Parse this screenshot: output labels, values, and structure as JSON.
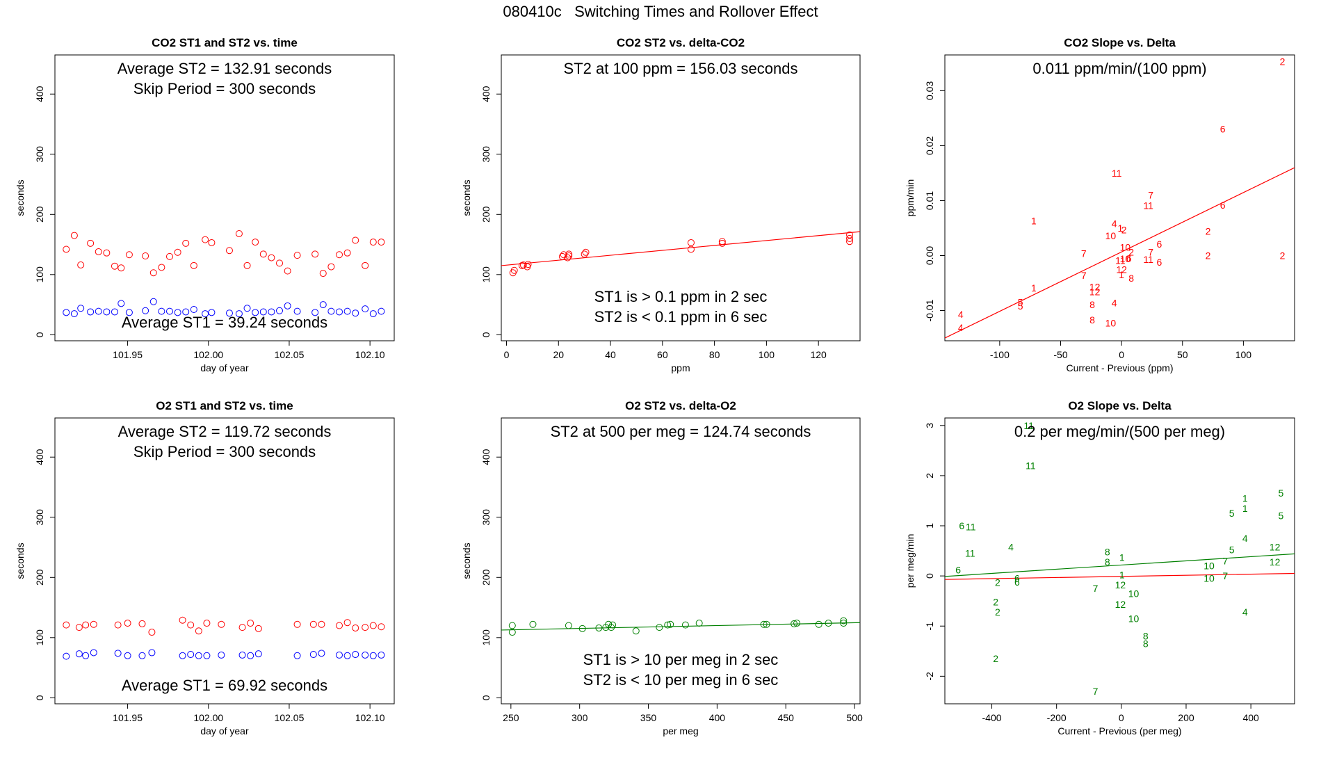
{
  "page_title": "080410c   Switching Times and Rollover Effect",
  "colors": {
    "st2": "#ff0000",
    "st1": "#0000ff",
    "co2": "#ff0000",
    "o2": "#008000",
    "frame": "#000000"
  },
  "chart_data": [
    {
      "id": "co2-st-vs-time",
      "type": "scatter",
      "title": "CO2 ST1 and ST2 vs. time",
      "xlabel": "day of year",
      "ylabel": "seconds",
      "xlim": [
        101.905,
        102.115
      ],
      "ylim": [
        -10,
        465
      ],
      "xticks": [
        101.95,
        102.0,
        102.05,
        102.1
      ],
      "xtick_labels": [
        "101.95",
        "102.00",
        "102.05",
        "102.10"
      ],
      "yticks": [
        0,
        100,
        200,
        300,
        400
      ],
      "ytick_labels": [
        "0",
        "100",
        "200",
        "300",
        "400"
      ],
      "annotations": [
        "Average ST2 =  132.91  seconds",
        "Skip Period =  300  seconds",
        "Average ST1 =  39.24  seconds"
      ],
      "series": [
        {
          "color_key": "st2",
          "marker": "circle",
          "x": [
            101.912,
            101.917,
            101.921,
            101.927,
            101.932,
            101.937,
            101.942,
            101.946,
            101.951,
            101.961,
            101.966,
            101.971,
            101.976,
            101.981,
            101.986,
            101.991,
            101.998,
            102.002,
            102.013,
            102.019,
            102.024,
            102.029,
            102.034,
            102.039,
            102.044,
            102.049,
            102.055,
            102.066,
            102.071,
            102.076,
            102.081,
            102.086,
            102.091,
            102.097,
            102.102,
            102.107
          ],
          "y": [
            142,
            165,
            116,
            152,
            138,
            136,
            114,
            111,
            133,
            131,
            103,
            112,
            130,
            137,
            152,
            115,
            158,
            153,
            140,
            168,
            115,
            154,
            134,
            128,
            119,
            106,
            132,
            134,
            102,
            113,
            133,
            136,
            157,
            115,
            154,
            154
          ]
        },
        {
          "color_key": "st1",
          "marker": "circle",
          "x": [
            101.912,
            101.917,
            101.921,
            101.927,
            101.932,
            101.937,
            101.942,
            101.946,
            101.951,
            101.961,
            101.966,
            101.971,
            101.976,
            101.981,
            101.986,
            101.991,
            101.998,
            102.002,
            102.013,
            102.019,
            102.024,
            102.029,
            102.034,
            102.039,
            102.044,
            102.049,
            102.055,
            102.066,
            102.071,
            102.076,
            102.081,
            102.086,
            102.091,
            102.097,
            102.102,
            102.107
          ],
          "y": [
            37,
            35,
            44,
            38,
            39,
            38,
            38,
            52,
            37,
            40,
            55,
            39,
            39,
            37,
            38,
            42,
            35,
            37,
            36,
            35,
            44,
            37,
            38,
            38,
            40,
            48,
            39,
            37,
            50,
            39,
            38,
            39,
            36,
            43,
            35,
            39
          ]
        }
      ]
    },
    {
      "id": "co2-st2-vs-delta",
      "type": "scatter",
      "title": "CO2 ST2 vs. delta-CO2",
      "xlabel": "ppm",
      "ylabel": "seconds",
      "xlim": [
        -2,
        136
      ],
      "ylim": [
        -10,
        465
      ],
      "xticks": [
        0,
        20,
        40,
        60,
        80,
        100,
        120
      ],
      "xtick_labels": [
        "0",
        "20",
        "40",
        "60",
        "80",
        "100",
        "120"
      ],
      "yticks": [
        0,
        100,
        200,
        300,
        400
      ],
      "ytick_labels": [
        "0",
        "100",
        "200",
        "300",
        "400"
      ],
      "annotations": [
        "ST2 at 100 ppm =  156.03  seconds",
        "ST1 is > 0.1 ppm in 2 sec",
        "ST2 is < 0.1 ppm in 6 sec"
      ],
      "fit_line": {
        "x": [
          -2,
          136
        ],
        "y": [
          114.9,
          171.3
        ]
      },
      "series": [
        {
          "color_key": "co2",
          "marker": "circle",
          "x": [
            2.5,
            3,
            6,
            6.5,
            8,
            8.3,
            21.5,
            22,
            23.5,
            24,
            24,
            30,
            30.5,
            71,
            71,
            83,
            83,
            132,
            132,
            132
          ],
          "y": [
            103,
            107,
            115,
            116,
            113,
            117,
            130,
            133,
            128,
            134,
            131,
            134,
            137,
            142,
            153,
            152,
            155,
            155,
            160,
            166
          ]
        }
      ]
    },
    {
      "id": "co2-slope-vs-delta",
      "type": "scatter",
      "title": "CO2 Slope vs. Delta",
      "xlabel": "Current - Previous (ppm)",
      "ylabel": "ppm/min",
      "xlim": [
        -145,
        142
      ],
      "ylim": [
        -0.0155,
        0.0365
      ],
      "xticks": [
        -100,
        -50,
        0,
        50,
        100
      ],
      "xtick_labels": [
        "-100",
        "-50",
        "0",
        "50",
        "100"
      ],
      "yticks": [
        -0.01,
        0.0,
        0.01,
        0.02,
        0.03
      ],
      "ytick_labels": [
        "-0.01",
        "0.00",
        "0.01",
        "0.02",
        "0.03"
      ],
      "annotations": [
        "0.011  ppm/min/(100 ppm)"
      ],
      "fit_line": {
        "x": [
          -145,
          142
        ],
        "y": [
          -0.015,
          0.016
        ]
      },
      "points": [
        {
          "x": 132,
          "y": 0.0353,
          "label": "2"
        },
        {
          "x": 83,
          "y": 0.023,
          "label": "6"
        },
        {
          "x": -4,
          "y": 0.015,
          "label": "11"
        },
        {
          "x": 24,
          "y": 0.011,
          "label": "7"
        },
        {
          "x": 22,
          "y": 0.0091,
          "label": "11"
        },
        {
          "x": 83,
          "y": 0.0092,
          "label": "6"
        },
        {
          "x": -72,
          "y": 0.0063,
          "label": "1"
        },
        {
          "x": -6,
          "y": 0.0058,
          "label": "4"
        },
        {
          "x": -1,
          "y": 0.005,
          "label": "1"
        },
        {
          "x": 2,
          "y": 0.0047,
          "label": "2"
        },
        {
          "x": -9,
          "y": 0.0036,
          "label": "10"
        },
        {
          "x": 71,
          "y": 0.0044,
          "label": "2"
        },
        {
          "x": 31,
          "y": 0.0021,
          "label": "6"
        },
        {
          "x": 3,
          "y": 0.0015,
          "label": "10"
        },
        {
          "x": 8,
          "y": 0.0006,
          "label": "2"
        },
        {
          "x": -31,
          "y": 0.0004,
          "label": "7"
        },
        {
          "x": 24,
          "y": 0.0006,
          "label": "7"
        },
        {
          "x": 71,
          "y": 0.0,
          "label": "2"
        },
        {
          "x": 132,
          "y": 0.0,
          "label": "2"
        },
        {
          "x": -1,
          "y": -0.0009,
          "label": "11"
        },
        {
          "x": 3,
          "y": -0.0006,
          "label": "10"
        },
        {
          "x": 6,
          "y": -0.0005,
          "label": "6"
        },
        {
          "x": 22,
          "y": -0.0007,
          "label": "11"
        },
        {
          "x": 31,
          "y": -0.0012,
          "label": "6"
        },
        {
          "x": 0,
          "y": -0.0025,
          "label": "12"
        },
        {
          "x": -31,
          "y": -0.0036,
          "label": "7"
        },
        {
          "x": 0,
          "y": -0.0035,
          "label": "1"
        },
        {
          "x": 8,
          "y": -0.0041,
          "label": "8"
        },
        {
          "x": -72,
          "y": -0.0059,
          "label": "1"
        },
        {
          "x": -22,
          "y": -0.0057,
          "label": "12"
        },
        {
          "x": -22,
          "y": -0.0066,
          "label": "12"
        },
        {
          "x": -83,
          "y": -0.0085,
          "label": "5"
        },
        {
          "x": -83,
          "y": -0.0092,
          "label": "5"
        },
        {
          "x": -24,
          "y": -0.0089,
          "label": "8"
        },
        {
          "x": -6,
          "y": -0.0086,
          "label": "4"
        },
        {
          "x": -132,
          "y": -0.0107,
          "label": "4"
        },
        {
          "x": -24,
          "y": -0.0117,
          "label": "8"
        },
        {
          "x": -9,
          "y": -0.0123,
          "label": "10"
        },
        {
          "x": -132,
          "y": -0.0131,
          "label": "4"
        }
      ]
    },
    {
      "id": "o2-st-vs-time",
      "type": "scatter",
      "title": "O2 ST1 and ST2 vs. time",
      "xlabel": "day of year",
      "ylabel": "seconds",
      "xlim": [
        101.905,
        102.115
      ],
      "ylim": [
        -10,
        465
      ],
      "xticks": [
        101.95,
        102.0,
        102.05,
        102.1
      ],
      "xtick_labels": [
        "101.95",
        "102.00",
        "102.05",
        "102.10"
      ],
      "yticks": [
        0,
        100,
        200,
        300,
        400
      ],
      "ytick_labels": [
        "0",
        "100",
        "200",
        "300",
        "400"
      ],
      "annotations": [
        "Average ST2 =  119.72  seconds",
        "Skip Period =  300  seconds",
        "Average ST1 =  69.92  seconds"
      ],
      "series": [
        {
          "color_key": "st2",
          "marker": "circle",
          "x": [
            101.912,
            101.92,
            101.924,
            101.929,
            101.944,
            101.95,
            101.959,
            101.965,
            101.984,
            101.989,
            101.994,
            101.999,
            102.008,
            102.021,
            102.026,
            102.031,
            102.055,
            102.065,
            102.07,
            102.081,
            102.086,
            102.091,
            102.097,
            102.102,
            102.107
          ],
          "y": [
            121,
            117,
            121,
            122,
            121,
            124,
            123,
            109,
            129,
            121,
            111,
            124,
            122,
            117,
            124,
            115,
            122,
            122,
            122,
            120,
            125,
            116,
            117,
            120,
            118
          ]
        },
        {
          "color_key": "st1",
          "marker": "circle",
          "x": [
            101.912,
            101.92,
            101.924,
            101.929,
            101.944,
            101.95,
            101.959,
            101.965,
            101.984,
            101.989,
            101.994,
            101.999,
            102.008,
            102.021,
            102.026,
            102.031,
            102.055,
            102.065,
            102.07,
            102.081,
            102.086,
            102.091,
            102.097,
            102.102,
            102.107
          ],
          "y": [
            69,
            73,
            70,
            75,
            74,
            70,
            70,
            75,
            70,
            72,
            70,
            70,
            71,
            71,
            70,
            73,
            70,
            72,
            74,
            71,
            70,
            72,
            71,
            70,
            71
          ]
        }
      ]
    },
    {
      "id": "o2-st2-vs-delta",
      "type": "scatter",
      "title": "O2 ST2 vs. delta-O2",
      "xlabel": "per meg",
      "ylabel": "seconds",
      "xlim": [
        243,
        504
      ],
      "ylim": [
        -10,
        465
      ],
      "xticks": [
        250,
        300,
        350,
        400,
        450,
        500
      ],
      "xtick_labels": [
        "250",
        "300",
        "350",
        "400",
        "450",
        "500"
      ],
      "yticks": [
        0,
        100,
        200,
        300,
        400
      ],
      "ytick_labels": [
        "0",
        "100",
        "200",
        "300",
        "400"
      ],
      "annotations": [
        "ST2 at 500 per meg =  124.74  seconds",
        "ST1 is > 10 per meg in 2 sec",
        "ST2 is < 10 per meg in 6 sec"
      ],
      "fit_line": {
        "x": [
          243,
          504
        ],
        "y": [
          112.6,
          124.9
        ]
      },
      "series": [
        {
          "color_key": "o2",
          "marker": "circle",
          "x": [
            251,
            251,
            266,
            292,
            302,
            314,
            319,
            321,
            323,
            324,
            341,
            358,
            364,
            366,
            377,
            387,
            434,
            436,
            456,
            458,
            474,
            481,
            492,
            492
          ],
          "y": [
            109,
            120,
            122,
            120,
            115,
            116,
            117,
            122,
            117,
            121,
            111,
            117,
            121,
            122,
            121,
            124,
            122,
            122,
            123,
            124,
            122,
            124,
            124,
            128
          ]
        }
      ]
    },
    {
      "id": "o2-slope-vs-delta",
      "type": "scatter",
      "title": "O2 Slope vs. Delta",
      "xlabel": "Current - Previous (per meg)",
      "ylabel": "per meg/min",
      "xlim": [
        -545,
        535
      ],
      "ylim": [
        -2.55,
        3.15
      ],
      "xticks": [
        -400,
        -200,
        0,
        200,
        400
      ],
      "xtick_labels": [
        "-400",
        "-200",
        "0",
        "200",
        "400"
      ],
      "yticks": [
        -2,
        -1,
        0,
        1,
        2,
        3
      ],
      "ytick_labels": [
        "-2",
        "-1",
        "0",
        "1",
        "2",
        "3"
      ],
      "annotations": [
        "0.2  per meg/min/(500 per meg)"
      ],
      "fit_line": {
        "x": [
          -545,
          535
        ],
        "y": [
          -0.01,
          0.44
        ]
      },
      "fit_line_2": {
        "x": [
          -545,
          535
        ],
        "y": [
          -0.07,
          0.05
        ]
      },
      "points": [
        {
          "x": -286,
          "y": 3.0,
          "label": "11"
        },
        {
          "x": -280,
          "y": 2.2,
          "label": "11"
        },
        {
          "x": 493,
          "y": 1.65,
          "label": "5"
        },
        {
          "x": 382,
          "y": 1.55,
          "label": "1"
        },
        {
          "x": 382,
          "y": 1.35,
          "label": "1"
        },
        {
          "x": 341,
          "y": 1.25,
          "label": "5"
        },
        {
          "x": 493,
          "y": 1.2,
          "label": "5"
        },
        {
          "x": -493,
          "y": 1.0,
          "label": "6"
        },
        {
          "x": -465,
          "y": 0.98,
          "label": "11"
        },
        {
          "x": -341,
          "y": 0.58,
          "label": "4"
        },
        {
          "x": 382,
          "y": 0.75,
          "label": "4"
        },
        {
          "x": -467,
          "y": 0.45,
          "label": "11"
        },
        {
          "x": -43,
          "y": 0.48,
          "label": "8"
        },
        {
          "x": 2,
          "y": 0.37,
          "label": "1"
        },
        {
          "x": -43,
          "y": 0.28,
          "label": "8"
        },
        {
          "x": 341,
          "y": 0.52,
          "label": "5"
        },
        {
          "x": 474,
          "y": 0.58,
          "label": "12"
        },
        {
          "x": 474,
          "y": 0.28,
          "label": "12"
        },
        {
          "x": 321,
          "y": 0.3,
          "label": "7"
        },
        {
          "x": 271,
          "y": 0.2,
          "label": "10"
        },
        {
          "x": -504,
          "y": 0.12,
          "label": "6"
        },
        {
          "x": 2,
          "y": 0.02,
          "label": "1"
        },
        {
          "x": -322,
          "y": -0.05,
          "label": "6"
        },
        {
          "x": -322,
          "y": -0.12,
          "label": "6"
        },
        {
          "x": -382,
          "y": -0.13,
          "label": "2"
        },
        {
          "x": -3,
          "y": -0.18,
          "label": "12"
        },
        {
          "x": -80,
          "y": -0.25,
          "label": "7"
        },
        {
          "x": 38,
          "y": -0.35,
          "label": "10"
        },
        {
          "x": 321,
          "y": 0.0,
          "label": "7"
        },
        {
          "x": 271,
          "y": -0.05,
          "label": "10"
        },
        {
          "x": -388,
          "y": -0.52,
          "label": "2"
        },
        {
          "x": -3,
          "y": -0.57,
          "label": "12"
        },
        {
          "x": -382,
          "y": -0.72,
          "label": "2"
        },
        {
          "x": 382,
          "y": -0.72,
          "label": "4"
        },
        {
          "x": 38,
          "y": -0.85,
          "label": "10"
        },
        {
          "x": 75,
          "y": -1.2,
          "label": "8"
        },
        {
          "x": 75,
          "y": -1.35,
          "label": "8"
        },
        {
          "x": -388,
          "y": -1.65,
          "label": "2"
        },
        {
          "x": -80,
          "y": -2.3,
          "label": "7"
        }
      ]
    }
  ]
}
